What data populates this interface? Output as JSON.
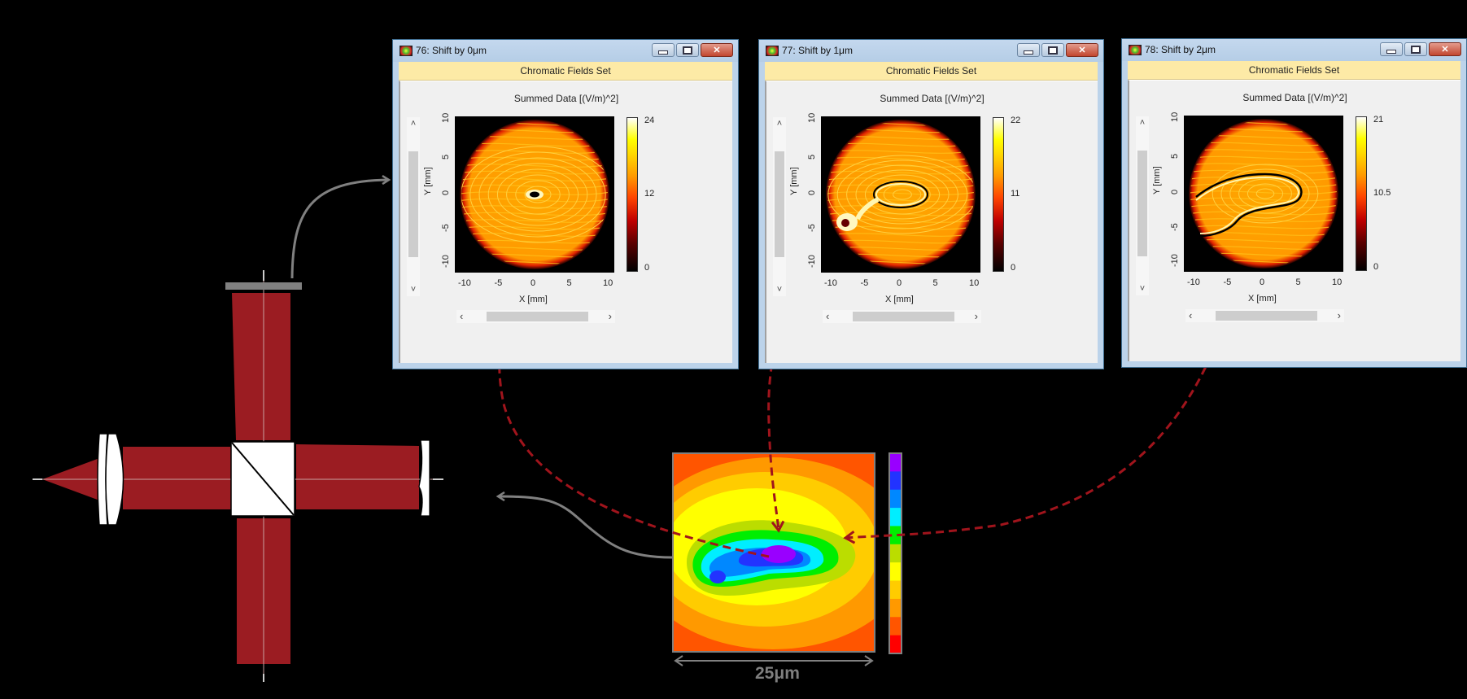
{
  "windows": [
    {
      "id": "win-76",
      "title": "76: Shift by 0μm",
      "ribbon": "Chromatic Fields Set",
      "plot_title": "Summed Data  [(V/m)^2]",
      "x_axis_label": "X [mm]",
      "y_axis_label": "Y [mm]",
      "x_ticks": [
        "-10",
        "-5",
        "0",
        "5",
        "10"
      ],
      "y_ticks": [
        "10",
        "5",
        "0",
        "-5",
        "-10"
      ],
      "colorbar_ticks": [
        "24",
        "12",
        "0"
      ],
      "vscroll_up": "˄",
      "vscroll_down": "˅",
      "hscroll_left": "‹",
      "hscroll_right": "›"
    },
    {
      "id": "win-77",
      "title": "77: Shift by 1μm",
      "ribbon": "Chromatic Fields Set",
      "plot_title": "Summed Data  [(V/m)^2]",
      "x_axis_label": "X [mm]",
      "y_axis_label": "Y [mm]",
      "x_ticks": [
        "-10",
        "-5",
        "0",
        "5",
        "10"
      ],
      "y_ticks": [
        "10",
        "5",
        "0",
        "-5",
        "-10"
      ],
      "colorbar_ticks": [
        "22",
        "11",
        "0"
      ],
      "vscroll_up": "˄",
      "vscroll_down": "˅",
      "hscroll_left": "‹",
      "hscroll_right": "›"
    },
    {
      "id": "win-78",
      "title": "78: Shift by 2μm",
      "ribbon": "Chromatic Fields Set",
      "plot_title": "Summed Data  [(V/m)^2]",
      "x_axis_label": "X [mm]",
      "y_axis_label": "Y [mm]",
      "x_ticks": [
        "-10",
        "-5",
        "0",
        "5",
        "10"
      ],
      "y_ticks": [
        "10",
        "5",
        "0",
        "-5",
        "-10"
      ],
      "colorbar_ticks": [
        "21",
        "10.5",
        "0"
      ],
      "vscroll_up": "˄",
      "vscroll_down": "˅",
      "hscroll_left": "‹",
      "hscroll_right": "›"
    }
  ],
  "contour_map": {
    "scale_label": "25μm",
    "colorbar_colors": [
      "#9900ff",
      "#2233ff",
      "#0088ff",
      "#00eeff",
      "#00ee00",
      "#bbdd00",
      "#ffff00",
      "#ffcc00",
      "#ff9900",
      "#ff5500",
      "#ff0000"
    ]
  },
  "colors": {
    "beam": "#9b1c22",
    "annotation_arrow": "#a0141c",
    "connector_arrow": "#808080",
    "detector": "#808080"
  }
}
